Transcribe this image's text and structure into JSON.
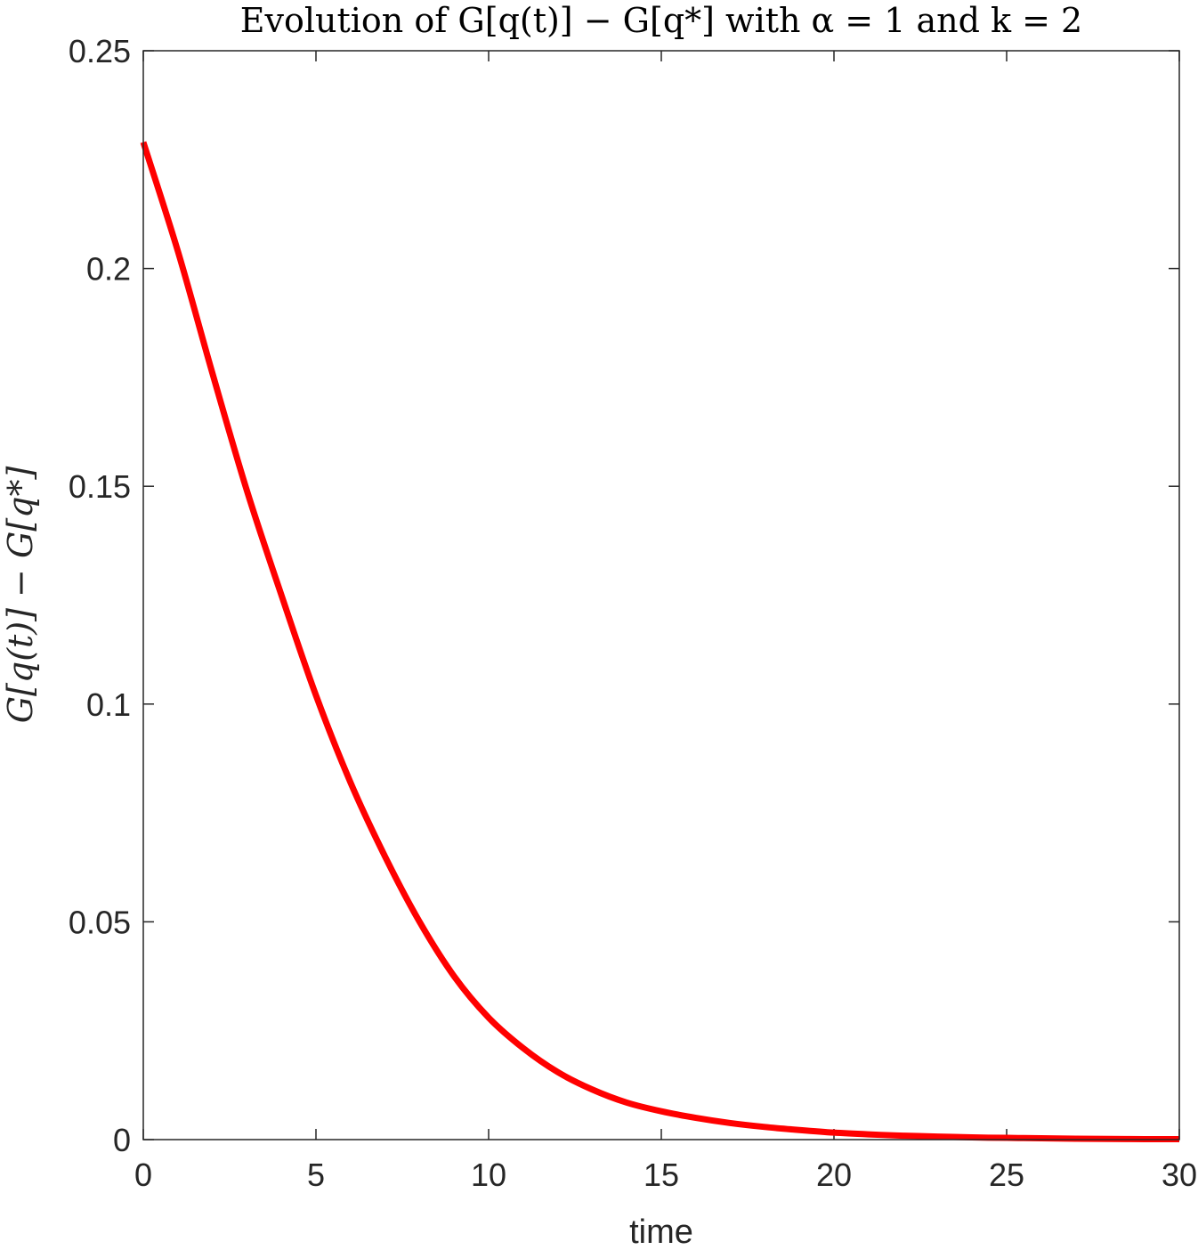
{
  "chart_data": {
    "type": "line",
    "title": "Evolution of G[q(t)] − G[q*] with α = 1 and k = 2",
    "xlabel": "time",
    "ylabel": "G[q(t)] − G[q*]",
    "xlim": [
      0,
      30
    ],
    "ylim": [
      0,
      0.25
    ],
    "xticks": [
      0,
      5,
      10,
      15,
      20,
      25,
      30
    ],
    "yticks": [
      0,
      0.05,
      0.1,
      0.15,
      0.2,
      0.25
    ],
    "xtick_labels": [
      "0",
      "5",
      "10",
      "15",
      "20",
      "25",
      "30"
    ],
    "ytick_labels": [
      "0",
      "0.05",
      "0.1",
      "0.15",
      "0.2",
      "0.25"
    ],
    "grid": false,
    "series": [
      {
        "color": "#ff0000",
        "x": [
          0,
          1,
          2,
          3,
          4,
          5,
          6,
          7,
          8,
          9,
          10,
          11,
          12,
          13,
          14,
          15,
          16,
          17,
          18,
          19,
          20,
          21,
          22,
          23,
          24,
          25,
          26,
          27,
          28,
          29,
          30
        ],
        "y": [
          0.229,
          0.204,
          0.176,
          0.149,
          0.125,
          0.102,
          0.082,
          0.065,
          0.05,
          0.0375,
          0.028,
          0.021,
          0.0155,
          0.0115,
          0.0085,
          0.0065,
          0.005,
          0.0038,
          0.0029,
          0.0022,
          0.0016,
          0.0012,
          0.0009,
          0.0007,
          0.0005,
          0.0004,
          0.0003,
          0.0002,
          0.00015,
          0.0001,
          0.0001
        ]
      }
    ]
  }
}
